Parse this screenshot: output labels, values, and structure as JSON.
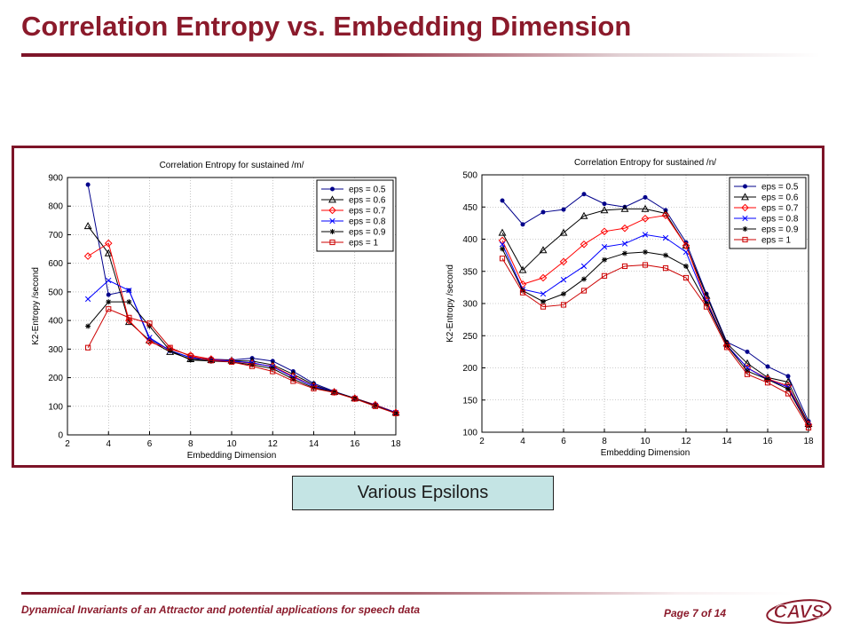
{
  "slide": {
    "title": "Correlation Entropy vs. Embedding Dimension",
    "caption": "Various Epsilons",
    "footer_text": "Dynamical Invariants of an Attractor and potential applications for speech data",
    "page_text": "Page 7 of 14",
    "logo_text": "CAVS"
  },
  "colors": {
    "brand": "#8b1a2b",
    "caption_bg": "#c4e4e4"
  },
  "chart_data": [
    {
      "type": "line",
      "title": "Correlation Entropy for sustained /m/",
      "xlabel": "Embedding Dimension",
      "ylabel": "K2-Entropy /second",
      "xlim": [
        2,
        18
      ],
      "ylim": [
        0,
        900
      ],
      "xticks": [
        2,
        4,
        6,
        8,
        10,
        12,
        14,
        16,
        18
      ],
      "yticks": [
        0,
        100,
        200,
        300,
        400,
        500,
        600,
        700,
        800,
        900
      ],
      "grid": true,
      "legend_position": "top-right",
      "x": [
        3,
        4,
        5,
        6,
        7,
        8,
        9,
        10,
        11,
        12,
        13,
        14,
        15,
        16,
        17,
        18
      ],
      "series": [
        {
          "name": "eps = 0.5",
          "color": "#00008b",
          "marker": "dot",
          "values": [
            875,
            490,
            505,
            335,
            295,
            270,
            265,
            262,
            268,
            258,
            222,
            180,
            152,
            128,
            105,
            78
          ]
        },
        {
          "name": "eps = 0.6",
          "color": "#000000",
          "marker": "triangle",
          "values": [
            730,
            635,
            395,
            330,
            290,
            265,
            262,
            260,
            258,
            245,
            212,
            175,
            150,
            128,
            105,
            78
          ]
        },
        {
          "name": "eps = 0.7",
          "color": "#ff0000",
          "marker": "diamond",
          "values": [
            625,
            670,
            400,
            325,
            300,
            278,
            265,
            258,
            250,
            240,
            205,
            170,
            150,
            128,
            105,
            78
          ]
        },
        {
          "name": "eps = 0.8",
          "color": "#0000ff",
          "marker": "x",
          "values": [
            475,
            540,
            505,
            340,
            295,
            270,
            262,
            258,
            252,
            238,
            202,
            170,
            150,
            128,
            103,
            78
          ]
        },
        {
          "name": "eps = 0.9",
          "color": "#000000",
          "marker": "star",
          "values": [
            380,
            465,
            465,
            380,
            295,
            262,
            258,
            255,
            245,
            232,
            195,
            165,
            150,
            128,
            102,
            76
          ]
        },
        {
          "name": "eps = 1",
          "color": "#cc0000",
          "marker": "square",
          "values": [
            305,
            440,
            410,
            390,
            305,
            275,
            260,
            255,
            240,
            222,
            188,
            162,
            148,
            126,
            100,
            75
          ]
        }
      ]
    },
    {
      "type": "line",
      "title": "Correlation Entropy for sustained /n/",
      "xlabel": "Embedding Dimension",
      "ylabel": "K2-Entropy /second",
      "xlim": [
        2,
        18
      ],
      "ylim": [
        100,
        500
      ],
      "xticks": [
        2,
        4,
        6,
        8,
        10,
        12,
        14,
        16,
        18
      ],
      "yticks": [
        100,
        150,
        200,
        250,
        300,
        350,
        400,
        450,
        500
      ],
      "grid": true,
      "legend_position": "top-right",
      "x": [
        3,
        4,
        5,
        6,
        7,
        8,
        9,
        10,
        11,
        12,
        13,
        14,
        15,
        16,
        17,
        18
      ],
      "series": [
        {
          "name": "eps = 0.5",
          "color": "#00008b",
          "marker": "dot",
          "values": [
            460,
            423,
            442,
            446,
            470,
            455,
            450,
            465,
            445,
            395,
            315,
            240,
            225,
            202,
            187,
            117
          ]
        },
        {
          "name": "eps = 0.6",
          "color": "#000000",
          "marker": "triangle",
          "values": [
            410,
            352,
            383,
            410,
            436,
            445,
            447,
            447,
            440,
            390,
            312,
            238,
            207,
            185,
            178,
            113
          ]
        },
        {
          "name": "eps = 0.7",
          "color": "#ff0000",
          "marker": "diamond",
          "values": [
            398,
            330,
            340,
            365,
            392,
            412,
            417,
            432,
            437,
            390,
            305,
            235,
            200,
            183,
            172,
            112
          ]
        },
        {
          "name": "eps = 0.8",
          "color": "#0000ff",
          "marker": "x",
          "values": [
            392,
            322,
            315,
            337,
            358,
            388,
            393,
            407,
            402,
            380,
            303,
            235,
            200,
            182,
            170,
            110
          ]
        },
        {
          "name": "eps = 0.9",
          "color": "#000000",
          "marker": "star",
          "values": [
            385,
            320,
            303,
            315,
            338,
            368,
            378,
            380,
            375,
            358,
            300,
            235,
            195,
            182,
            167,
            110
          ]
        },
        {
          "name": "eps = 1",
          "color": "#cc0000",
          "marker": "square",
          "values": [
            370,
            317,
            295,
            298,
            320,
            343,
            358,
            360,
            355,
            340,
            295,
            232,
            190,
            177,
            160,
            107
          ]
        }
      ]
    }
  ]
}
